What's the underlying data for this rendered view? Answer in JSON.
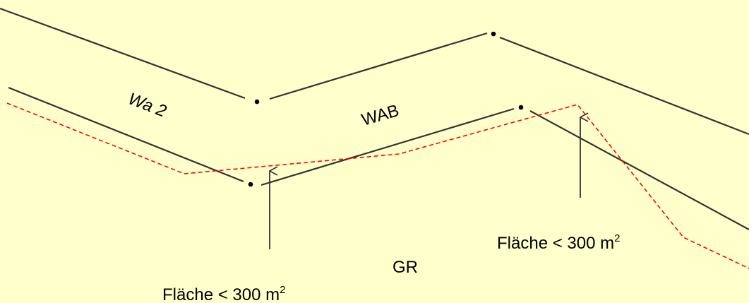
{
  "labels": {
    "zone_left": "Wa 2",
    "zone_center": "WAB",
    "zone_bottom": "GR",
    "area_note_left": "Fläche < 300 m",
    "area_note_right": "Fläche < 300 m",
    "area_unit_exponent": "2"
  },
  "colors": {
    "background": "#ffffcc",
    "boundary_line": "#333333",
    "dashed_line": "#ff0000"
  }
}
